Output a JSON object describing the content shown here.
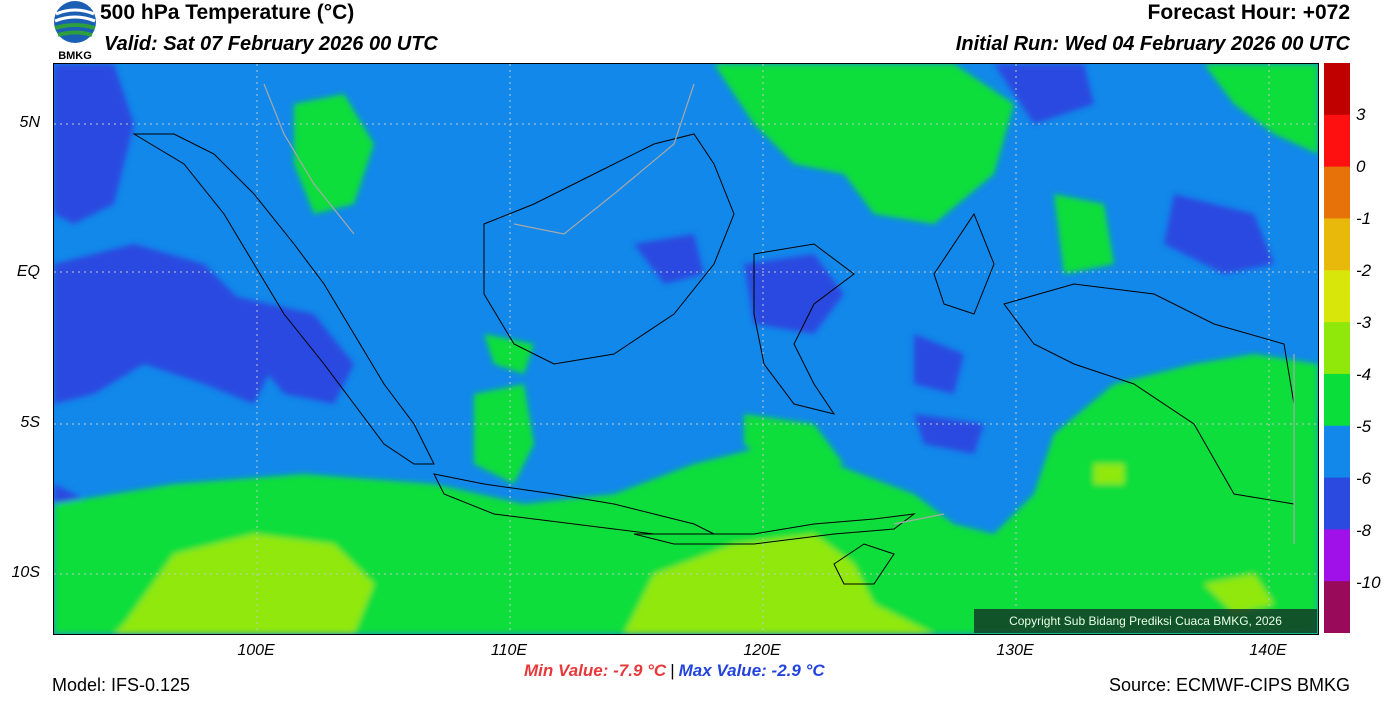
{
  "header": {
    "title": "500 hPa Temperature (°C)",
    "valid": "Valid: Sat 07 February 2026 00 UTC",
    "forecast_hour": "Forecast Hour: +072",
    "initial_run": "Initial Run: Wed 04 February 2026 00 UTC"
  },
  "logo": {
    "text": "BMKG",
    "icon": "bmkg-logo-icon"
  },
  "axes": {
    "lat_labels": [
      "5N",
      "EQ",
      "5S",
      "10S"
    ],
    "lon_labels": [
      "100E",
      "110E",
      "120E",
      "130E",
      "140E"
    ]
  },
  "colorbar": {
    "labels": [
      "3",
      "0",
      "-1",
      "-2",
      "-3",
      "-4",
      "-5",
      "-6",
      "-8",
      "-10"
    ],
    "colors": [
      "#c00000",
      "#ff1010",
      "#e8720a",
      "#e8b80a",
      "#d8e60a",
      "#90e80a",
      "#0ade3a",
      "#1188ea",
      "#2a4ae0",
      "#a010e8",
      "#9a0a5a"
    ]
  },
  "stats": {
    "min": "Min Value: -7.9 °C",
    "separator": "|",
    "max": "Max Value: -2.9 °C"
  },
  "footer": {
    "model": "Model: IFS-0.125",
    "source": "Source: ECMWF-CIPS BMKG",
    "copyright": "Copyright Sub Bidang Prediksi Cuaca BMKG, 2026"
  }
}
